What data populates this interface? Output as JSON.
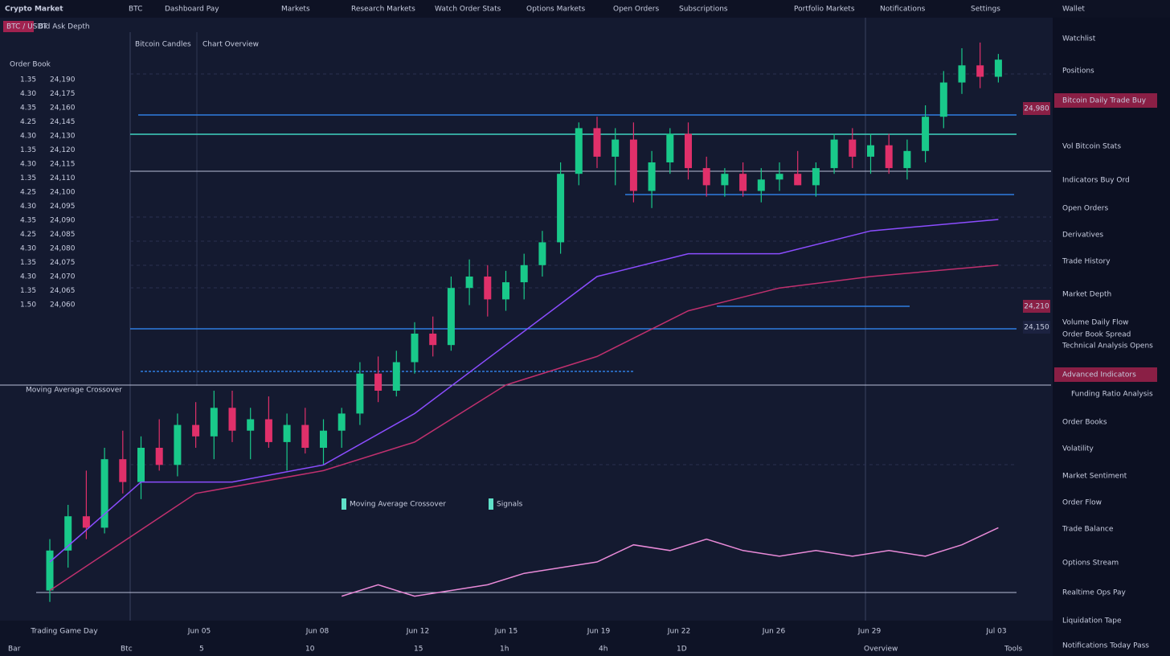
{
  "header": {
    "title": "Crypto Market",
    "pair": "BTC",
    "items": [
      "Dashboard Pay",
      "Markets",
      "Research Markets",
      "Watch Order Stats",
      "Options Markets",
      "Open Orders",
      "Subscriptions",
      "Portfolio Markets",
      "Notifications",
      "Settings"
    ],
    "account": "Wallet"
  },
  "left_panel": {
    "title": "Order Book",
    "tabs": [
      "BTC / USDT",
      "Bid Ask Depth"
    ],
    "rows": [
      {
        "label": "1.35",
        "value": "24,190"
      },
      {
        "label": "4.30",
        "value": "24,175"
      },
      {
        "label": "4.35",
        "value": "24,160"
      },
      {
        "label": "4.25",
        "value": "24,145"
      },
      {
        "label": "4.30",
        "value": "24,130"
      },
      {
        "label": "1.35",
        "value": "24,120"
      },
      {
        "label": "4.30",
        "value": "24,115"
      },
      {
        "label": "1.35",
        "value": "24,110"
      },
      {
        "label": "4.25",
        "value": "24,100"
      },
      {
        "label": "4.30",
        "value": "24,095"
      },
      {
        "label": "4.35",
        "value": "24,090"
      },
      {
        "label": "4.25",
        "value": "24,085"
      },
      {
        "label": "4.30",
        "value": "24,080"
      },
      {
        "label": "1.35",
        "value": "24,075"
      },
      {
        "label": "4.30",
        "value": "24,070"
      },
      {
        "label": "1.35",
        "value": "24,065"
      },
      {
        "label": "1.50",
        "value": "24,060"
      }
    ]
  },
  "chart": {
    "type": "candlestick",
    "title": "Bitcoin Candles",
    "subtitle": "Chart Overview",
    "indicator_title": "Moving Average Crossover",
    "up_color": "#19c98a",
    "down_color": "#e0306a",
    "candles": [
      [
        5,
        14,
        3,
        12
      ],
      [
        12,
        20,
        9,
        18
      ],
      [
        18,
        26,
        14,
        16
      ],
      [
        16,
        30,
        15,
        28
      ],
      [
        28,
        33,
        22,
        24
      ],
      [
        24,
        32,
        21,
        30
      ],
      [
        30,
        35,
        26,
        27
      ],
      [
        27,
        36,
        25,
        34
      ],
      [
        34,
        38,
        30,
        32
      ],
      [
        32,
        40,
        28,
        37
      ],
      [
        37,
        40,
        31,
        33
      ],
      [
        33,
        37,
        28,
        35
      ],
      [
        35,
        39,
        30,
        31
      ],
      [
        31,
        36,
        26,
        34
      ],
      [
        34,
        37,
        29,
        30
      ],
      [
        30,
        35,
        27,
        33
      ],
      [
        33,
        37,
        30,
        36
      ],
      [
        36,
        45,
        34,
        43
      ],
      [
        43,
        46,
        38,
        40
      ],
      [
        40,
        47,
        39,
        45
      ],
      [
        45,
        52,
        43,
        50
      ],
      [
        50,
        53,
        46,
        48
      ],
      [
        48,
        60,
        47,
        58
      ],
      [
        58,
        63,
        55,
        60
      ],
      [
        60,
        62,
        53,
        56
      ],
      [
        56,
        61,
        54,
        59
      ],
      [
        59,
        64,
        56,
        62
      ],
      [
        62,
        68,
        60,
        66
      ],
      [
        66,
        80,
        64,
        78
      ],
      [
        78,
        87,
        76,
        86
      ],
      [
        86,
        88,
        79,
        81
      ],
      [
        81,
        86,
        76,
        84
      ],
      [
        84,
        87,
        73,
        75
      ],
      [
        75,
        82,
        72,
        80
      ],
      [
        80,
        86,
        78,
        85
      ],
      [
        85,
        87,
        77,
        79
      ],
      [
        79,
        81,
        74,
        76
      ],
      [
        76,
        79,
        74,
        78
      ],
      [
        78,
        80,
        74,
        75
      ],
      [
        75,
        79,
        73,
        77
      ],
      [
        77,
        80,
        75,
        78
      ],
      [
        78,
        82,
        76,
        76
      ],
      [
        76,
        80,
        74,
        79
      ],
      [
        79,
        85,
        78,
        84
      ],
      [
        84,
        86,
        79,
        81
      ],
      [
        81,
        85,
        78,
        83
      ],
      [
        83,
        85,
        78,
        79
      ],
      [
        79,
        84,
        77,
        82
      ],
      [
        82,
        90,
        80,
        88
      ],
      [
        88,
        96,
        86,
        94
      ],
      [
        94,
        100,
        92,
        97
      ],
      [
        97,
        101,
        93,
        95
      ],
      [
        95,
        99,
        94,
        98
      ]
    ],
    "lines": [
      {
        "name": "Moving Average Crossover",
        "color": "#8b4dff",
        "x": [
          0,
          5,
          10,
          15,
          20,
          25,
          30,
          35,
          40,
          45,
          52
        ],
        "values": [
          10,
          24,
          24,
          27,
          36,
          48,
          60,
          64,
          64,
          68,
          70
        ]
      },
      {
        "name": "Signals",
        "color": "#c0306e",
        "x": [
          0,
          8,
          15,
          20,
          25,
          30,
          35,
          40,
          45,
          52
        ],
        "values": [
          5,
          22,
          26,
          31,
          41,
          46,
          54,
          58,
          60,
          62
        ]
      },
      {
        "color": "#e98ad8",
        "x": [
          16,
          18,
          20,
          22,
          24,
          26,
          28,
          30,
          32,
          34,
          36,
          38,
          40,
          42,
          44,
          46,
          48,
          50,
          52
        ],
        "values": [
          4,
          6,
          4,
          5,
          6,
          8,
          9,
          10,
          13,
          12,
          14,
          12,
          11,
          12,
          11,
          12,
          11,
          13,
          16
        ]
      }
    ],
    "price_tags": [
      "24,980",
      "24,210",
      "24,150"
    ],
    "x_labels": [
      "Trading Game Day",
      "Jun 05",
      "Jun 08",
      "Jun 12",
      "Jun 15",
      "Jun 19",
      "Jun 22",
      "Jun 26",
      "Jun 29",
      "Jul 03"
    ]
  },
  "footer": {
    "items": [
      "Bar",
      "Btc",
      "5",
      "10",
      "15",
      "1h",
      "4h",
      "1D",
      "Overview",
      "Tools"
    ]
  },
  "right_panel": {
    "items": [
      "Watchlist",
      "Positions",
      "Bitcoin Daily Trade Buy",
      "Vol Bitcoin Stats",
      "Indicators Buy Ord",
      "Open Orders",
      "Derivatives",
      "Trade History",
      "Market Depth",
      "Volume Daily Flow",
      "Order Book Spread",
      "Technical Analysis Opens",
      "Advanced Indicators",
      "Funding Ratio Analysis",
      "Order Books",
      "Volatility",
      "Market Sentiment",
      "Order Flow",
      "Trade Balance",
      "Options Stream",
      "Realtime Ops Pay",
      "Liquidation Tape",
      "Notifications Today Pass"
    ],
    "highlighted": [
      2,
      12
    ]
  }
}
